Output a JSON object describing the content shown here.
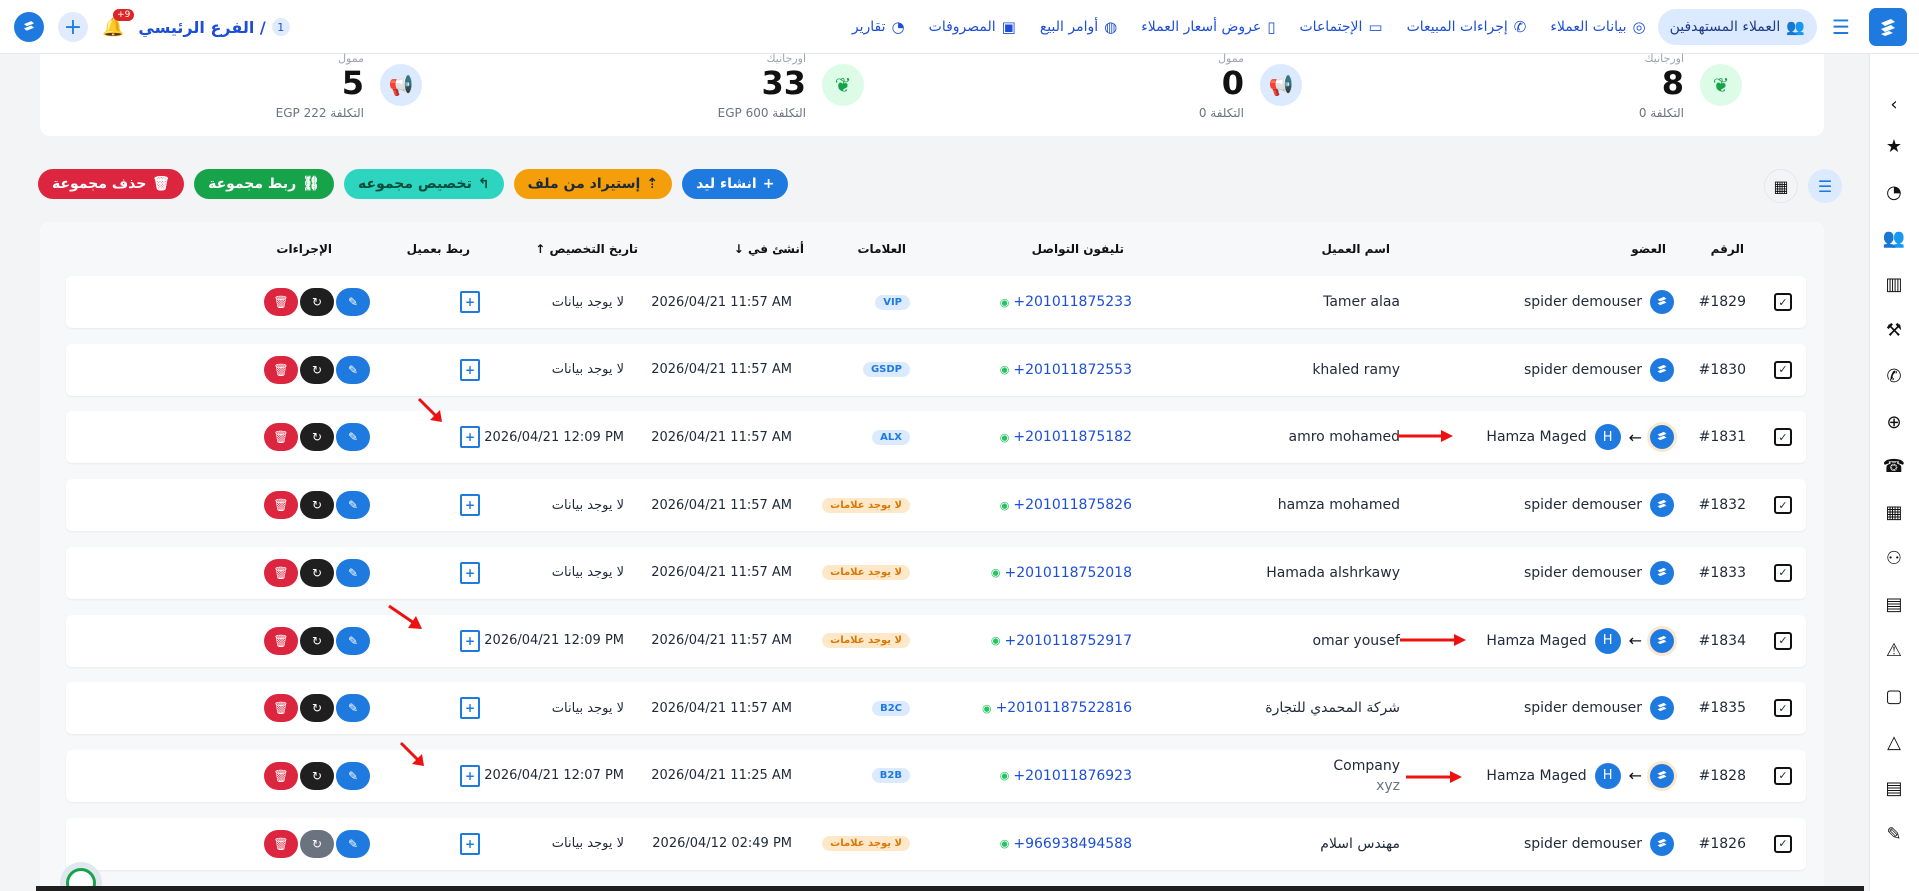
{
  "topnav": {
    "items": [
      {
        "label": "العملاء المستهدفين",
        "icon": "target-customers-icon",
        "active": true
      },
      {
        "label": "بيانات العملاء",
        "icon": "customer-data-icon"
      },
      {
        "label": "إجراءات المبيعات",
        "icon": "phone-icon"
      },
      {
        "label": "الإجتماعات",
        "icon": "meetings-icon"
      },
      {
        "label": "عروض أسعار العملاء",
        "icon": "quotes-icon"
      },
      {
        "label": "أوامر البيع",
        "icon": "sales-order-icon"
      },
      {
        "label": "المصروفات",
        "icon": "expenses-icon"
      },
      {
        "label": "تقارير",
        "icon": "reports-icon"
      }
    ],
    "branch": "الفرع الرئيسي /",
    "branch_number": "1",
    "notifications": "+9"
  },
  "stats": [
    {
      "label": "اورجانيك",
      "value": "8",
      "cost": "التكلفة 0",
      "icon": "leaf-icon",
      "tone": "green"
    },
    {
      "label": "ممول",
      "value": "0",
      "cost": "التكلفة 0",
      "icon": "megaphone-icon",
      "tone": "blue"
    },
    {
      "label": "اورجانيك",
      "value": "33",
      "cost": "التكلفة 600 EGP",
      "icon": "leaf-icon",
      "tone": "green"
    },
    {
      "label": "ممول",
      "value": "5",
      "cost": "التكلفة 222 EGP",
      "icon": "megaphone-icon",
      "tone": "blue"
    }
  ],
  "actions": {
    "create_lead": "انشاء ليد",
    "import_file": "إستيراد من ملف",
    "assign_group": "تخصيص مجموعه",
    "link_group": "ربط مجموعة",
    "delete_group": "حذف مجموعة"
  },
  "table": {
    "headers": {
      "number": "الرقم",
      "member": "العضو",
      "customer": "اسم العميل",
      "phone": "تليفون التواصل",
      "tags": "العلامات",
      "created": "أنشئ في",
      "assigned_date": "تاريخ التخصيص",
      "link_customer": "ربط بعميل",
      "actions": "الإجراءات"
    },
    "rows": [
      {
        "id": "#1829",
        "member": "spider demouser",
        "assignee": "",
        "customer": "Tamer alaa",
        "customer2": "",
        "phone": "+201011875233",
        "tag": "VIP",
        "tag_tone": "blue",
        "created": "2026/04/21 11:57 AM",
        "assigned": "لا يوجد بيانات"
      },
      {
        "id": "#1830",
        "member": "spider demouser",
        "assignee": "",
        "customer": "khaled ramy",
        "customer2": "",
        "phone": "+201011872553",
        "tag": "GSDP",
        "tag_tone": "blue",
        "created": "2026/04/21 11:57 AM",
        "assigned": "لا يوجد بيانات"
      },
      {
        "id": "#1831",
        "member": "",
        "assignee": "Hamza Maged",
        "customer": "amro mohamed",
        "customer2": "",
        "phone": "+201011875182",
        "tag": "ALX",
        "tag_tone": "blue",
        "created": "2026/04/21 11:57 AM",
        "assigned": "2026/04/21 12:09 PM"
      },
      {
        "id": "#1832",
        "member": "spider demouser",
        "assignee": "",
        "customer": "hamza mohamed",
        "customer2": "",
        "phone": "+201011875826",
        "tag": "لا يوجد علامات",
        "tag_tone": "orange",
        "created": "2026/04/21 11:57 AM",
        "assigned": "لا يوجد بيانات"
      },
      {
        "id": "#1833",
        "member": "spider demouser",
        "assignee": "",
        "customer": "Hamada alshrkawy",
        "customer2": "",
        "phone": "+2010118752018",
        "tag": "لا يوجد علامات",
        "tag_tone": "orange",
        "created": "2026/04/21 11:57 AM",
        "assigned": "لا يوجد بيانات"
      },
      {
        "id": "#1834",
        "member": "",
        "assignee": "Hamza Maged",
        "customer": "omar yousef",
        "customer2": "",
        "phone": "+2010118752917",
        "tag": "لا يوجد علامات",
        "tag_tone": "orange",
        "created": "2026/04/21 11:57 AM",
        "assigned": "2026/04/21 12:09 PM"
      },
      {
        "id": "#1835",
        "member": "spider demouser",
        "assignee": "",
        "customer": "شركة المحمدي للتجارة",
        "customer2": "",
        "phone": "+20101187522816",
        "tag": "B2C",
        "tag_tone": "blue",
        "created": "2026/04/21 11:57 AM",
        "assigned": "لا يوجد بيانات"
      },
      {
        "id": "#1828",
        "member": "",
        "assignee": "Hamza Maged",
        "customer": "Company",
        "customer2": "xyz",
        "phone": "+201011876923",
        "tag": "B2B",
        "tag_tone": "blue",
        "created": "2026/04/21 11:25 AM",
        "assigned": "2026/04/21 12:07 PM"
      },
      {
        "id": "#1826",
        "member": "spider demouser",
        "assignee": "",
        "customer": "مهندس اسلام",
        "customer2": "",
        "phone": "+966938494588",
        "tag": "لا يوجد علامات",
        "tag_tone": "orange",
        "created": "2026/04/12 02:49 PM",
        "assigned": "لا يوجد بيانات"
      }
    ]
  }
}
